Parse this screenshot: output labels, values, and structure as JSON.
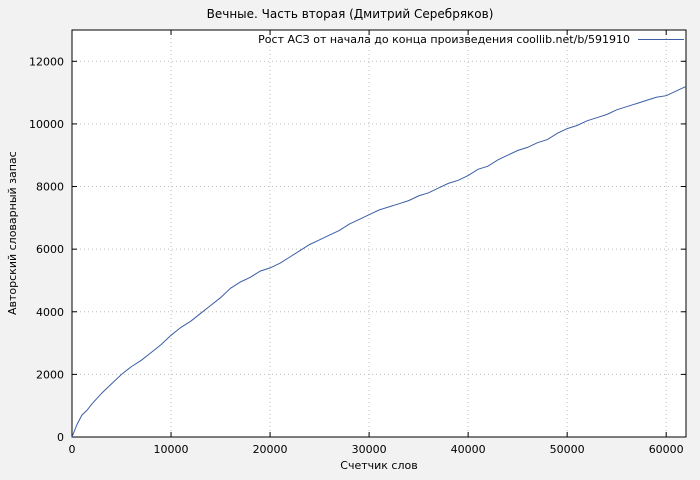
{
  "chart_data": {
    "type": "line",
    "title": "Вечные. Часть вторая (Дмитрий Серебряков)",
    "legend": "Рост АСЗ от начала до конца произведения coollib.net/b/591910",
    "xlabel": "Счетчик слов",
    "ylabel": "Авторский словарный запас",
    "xlim": [
      0,
      62000
    ],
    "ylim": [
      0,
      13000
    ],
    "x_ticks": [
      0,
      10000,
      20000,
      30000,
      40000,
      50000,
      60000
    ],
    "y_ticks": [
      0,
      2000,
      4000,
      6000,
      8000,
      10000,
      12000
    ],
    "grid": true,
    "legend_position": "top-right",
    "line_color": "#3b5fa5",
    "grid_color": "#bdbdbd",
    "border_color": "#000000",
    "plot_bg": "#ffffff",
    "points": [
      [
        0,
        0
      ],
      [
        500,
        400
      ],
      [
        1000,
        700
      ],
      [
        1500,
        850
      ],
      [
        2000,
        1050
      ],
      [
        3000,
        1400
      ],
      [
        4000,
        1700
      ],
      [
        5000,
        2000
      ],
      [
        6000,
        2250
      ],
      [
        7000,
        2450
      ],
      [
        8000,
        2700
      ],
      [
        9000,
        2950
      ],
      [
        10000,
        3250
      ],
      [
        11000,
        3500
      ],
      [
        12000,
        3700
      ],
      [
        13000,
        3950
      ],
      [
        14000,
        4200
      ],
      [
        15000,
        4450
      ],
      [
        16000,
        4750
      ],
      [
        17000,
        4950
      ],
      [
        18000,
        5100
      ],
      [
        19000,
        5300
      ],
      [
        20000,
        5400
      ],
      [
        21000,
        5550
      ],
      [
        22000,
        5750
      ],
      [
        23000,
        5950
      ],
      [
        24000,
        6150
      ],
      [
        25000,
        6300
      ],
      [
        26000,
        6450
      ],
      [
        27000,
        6600
      ],
      [
        28000,
        6800
      ],
      [
        29000,
        6950
      ],
      [
        30000,
        7100
      ],
      [
        31000,
        7250
      ],
      [
        32000,
        7350
      ],
      [
        33000,
        7450
      ],
      [
        34000,
        7550
      ],
      [
        35000,
        7700
      ],
      [
        36000,
        7800
      ],
      [
        37000,
        7950
      ],
      [
        38000,
        8100
      ],
      [
        39000,
        8200
      ],
      [
        40000,
        8350
      ],
      [
        41000,
        8550
      ],
      [
        42000,
        8650
      ],
      [
        43000,
        8850
      ],
      [
        44000,
        9000
      ],
      [
        45000,
        9150
      ],
      [
        46000,
        9250
      ],
      [
        47000,
        9400
      ],
      [
        48000,
        9500
      ],
      [
        49000,
        9700
      ],
      [
        50000,
        9850
      ],
      [
        51000,
        9950
      ],
      [
        52000,
        10100
      ],
      [
        53000,
        10200
      ],
      [
        54000,
        10300
      ],
      [
        55000,
        10450
      ],
      [
        56000,
        10550
      ],
      [
        57000,
        10650
      ],
      [
        58000,
        10750
      ],
      [
        59000,
        10850
      ],
      [
        60000,
        10900
      ],
      [
        61000,
        11050
      ],
      [
        62000,
        11200
      ]
    ]
  }
}
